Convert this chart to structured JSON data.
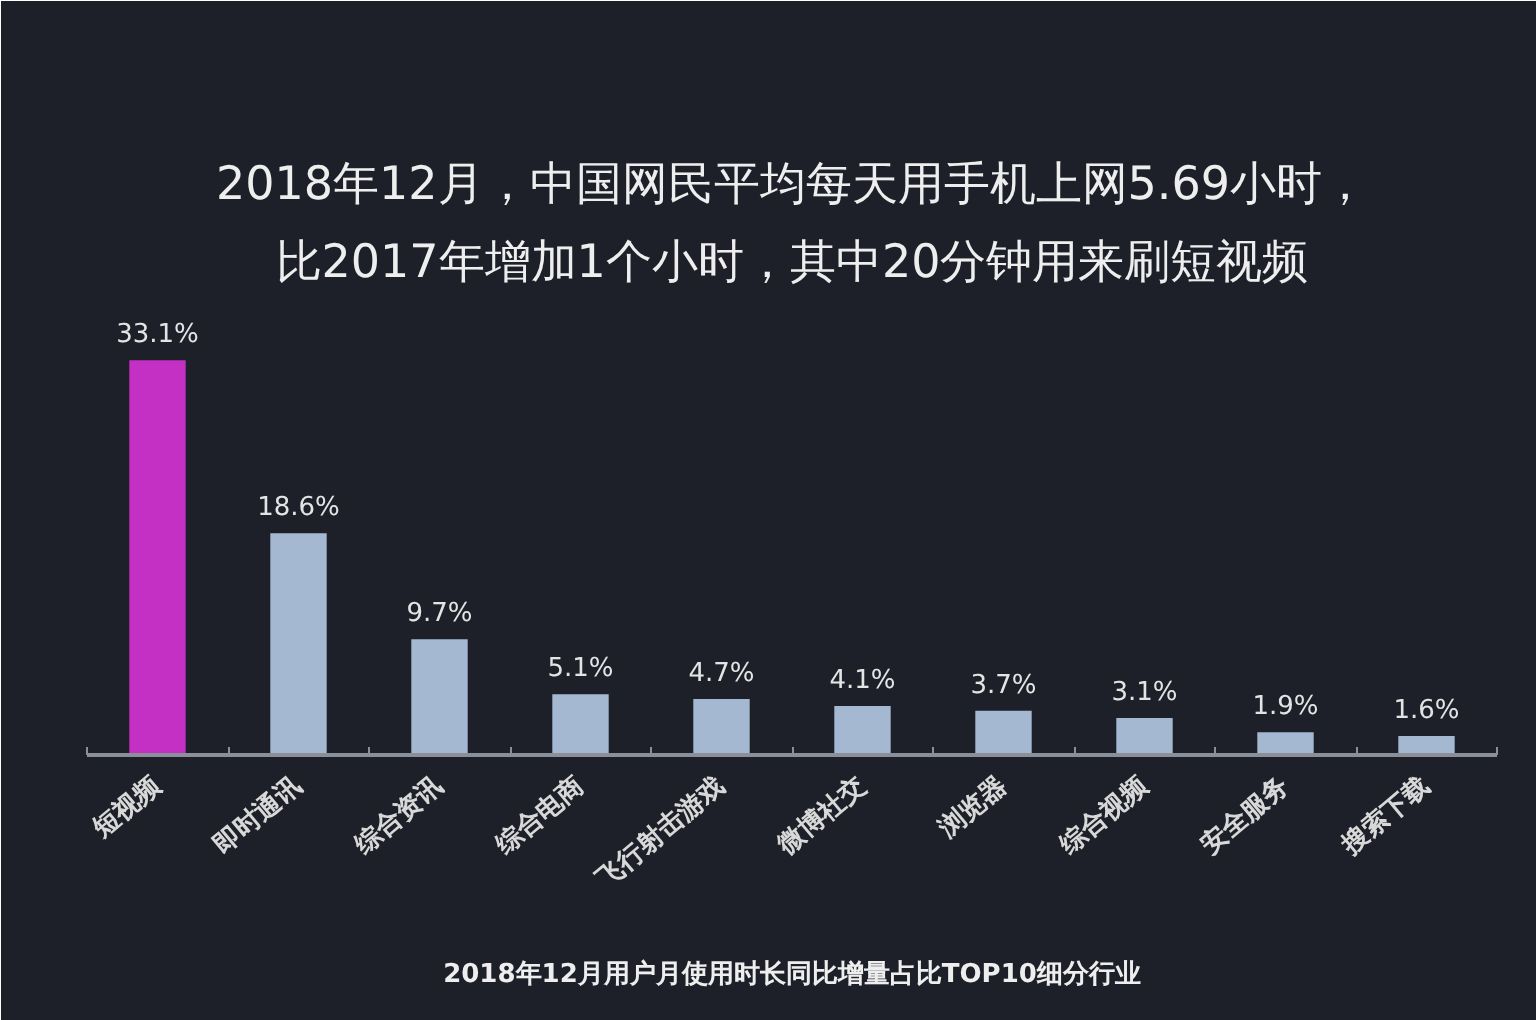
{
  "chart_data": {
    "type": "bar",
    "title": "2018年12月，中国网民平均每天用手机上网5.69小时，比2017年增加1个小时，其中20分钟用来刷短视频",
    "xlabel": "2018年12月用户月使用时长同比增量占比TOP10细分行业",
    "categories": [
      "短视频",
      "即时通讯",
      "综合资讯",
      "综合电商",
      "飞行射击游戏",
      "微博社交",
      "浏览器",
      "综合视频",
      "安全服务",
      "搜索下载"
    ],
    "values": [
      33.1,
      18.6,
      9.7,
      5.1,
      4.7,
      4.1,
      3.7,
      3.1,
      1.9,
      1.6
    ],
    "value_labels": [
      "33.1%",
      "18.6%",
      "9.7%",
      "5.1%",
      "4.7%",
      "4.1%",
      "3.7%",
      "3.1%",
      "1.9%",
      "1.6%"
    ],
    "colors": [
      "#c42fc4",
      "#a4b8d2",
      "#a4b8d2",
      "#a4b8d2",
      "#a4b8d2",
      "#a4b8d2",
      "#a4b8d2",
      "#a4b8d2",
      "#a4b8d2",
      "#a4b8d2"
    ],
    "tick_labels": "x"
  }
}
